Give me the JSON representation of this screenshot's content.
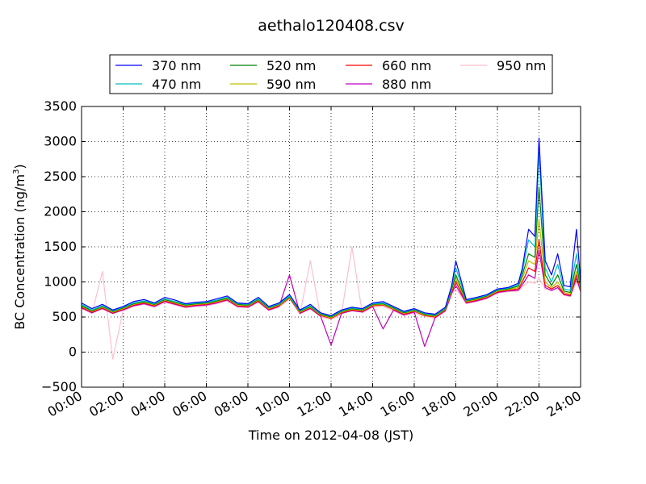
{
  "chart_data": {
    "type": "line",
    "title": "aethalo120408.csv",
    "xlabel": "Time on 2012-04-08 (JST)",
    "ylabel_main": "BC Concentration (ng/m",
    "ylabel_sup": "3",
    "ylabel_close": ")",
    "xlim": [
      0,
      24
    ],
    "ylim": [
      -500,
      3500
    ],
    "grid": true,
    "legend_position": "top-center",
    "x_ticks": [
      0,
      2,
      4,
      6,
      8,
      10,
      12,
      14,
      16,
      18,
      20,
      22,
      24
    ],
    "x_tick_labels": [
      "00:00",
      "02:00",
      "04:00",
      "06:00",
      "08:00",
      "10:00",
      "12:00",
      "14:00",
      "16:00",
      "18:00",
      "20:00",
      "22:00",
      "24:00"
    ],
    "y_ticks": [
      -500,
      0,
      500,
      1000,
      1500,
      2000,
      2500,
      3000,
      3500
    ],
    "y_tick_labels": [
      "−500",
      "0",
      "500",
      "1000",
      "1500",
      "2000",
      "2500",
      "3000",
      "3500"
    ],
    "x_sample_hours": [
      0.0,
      0.5,
      1.0,
      1.5,
      2.0,
      2.5,
      3.0,
      3.5,
      4.0,
      4.5,
      5.0,
      5.5,
      6.0,
      6.5,
      7.0,
      7.5,
      8.0,
      8.5,
      9.0,
      9.5,
      10.0,
      10.5,
      11.0,
      11.5,
      12.0,
      12.5,
      13.0,
      13.5,
      14.0,
      14.5,
      15.0,
      15.5,
      16.0,
      16.5,
      17.0,
      17.5,
      17.8,
      18.0,
      18.5,
      19.0,
      19.5,
      20.0,
      20.5,
      21.0,
      21.2,
      21.5,
      21.8,
      22.0,
      22.3,
      22.6,
      22.9,
      23.2,
      23.5,
      23.8,
      24.0
    ],
    "series": [
      {
        "name": "370 nm",
        "color": "#0000ff",
        "values": [
          700,
          620,
          680,
          600,
          650,
          720,
          750,
          700,
          780,
          740,
          690,
          710,
          720,
          760,
          800,
          700,
          690,
          780,
          650,
          700,
          820,
          600,
          680,
          560,
          520,
          600,
          640,
          620,
          700,
          720,
          650,
          580,
          620,
          560,
          540,
          640,
          950,
          1300,
          750,
          780,
          820,
          900,
          920,
          980,
          1200,
          1750,
          1650,
          3050,
          1300,
          1100,
          1400,
          950,
          930,
          1750,
          1000
        ]
      },
      {
        "name": "470 nm",
        "color": "#00bfbf",
        "values": [
          680,
          600,
          660,
          590,
          640,
          700,
          730,
          690,
          760,
          720,
          680,
          700,
          710,
          740,
          780,
          690,
          680,
          760,
          640,
          690,
          800,
          590,
          660,
          550,
          510,
          590,
          630,
          610,
          690,
          700,
          640,
          570,
          610,
          550,
          530,
          630,
          920,
          1200,
          740,
          770,
          810,
          890,
          910,
          960,
          1150,
          1600,
          1500,
          2850,
          1200,
          1000,
          1250,
          900,
          880,
          1400,
          950
        ]
      },
      {
        "name": "520 nm",
        "color": "#008000",
        "values": [
          660,
          590,
          650,
          580,
          630,
          690,
          720,
          680,
          750,
          710,
          670,
          690,
          700,
          730,
          770,
          680,
          670,
          750,
          630,
          680,
          790,
          580,
          650,
          540,
          500,
          580,
          620,
          600,
          680,
          690,
          630,
          560,
          600,
          540,
          520,
          620,
          900,
          1100,
          730,
          760,
          800,
          880,
          900,
          940,
          1100,
          1400,
          1350,
          2350,
          1100,
          950,
          1100,
          870,
          850,
          1250,
          920
        ]
      },
      {
        "name": "590 nm",
        "color": "#bfbf00",
        "values": [
          650,
          580,
          640,
          570,
          620,
          680,
          710,
          670,
          740,
          700,
          660,
          680,
          690,
          720,
          760,
          670,
          660,
          740,
          620,
          670,
          780,
          570,
          640,
          530,
          490,
          570,
          610,
          590,
          670,
          680,
          620,
          550,
          590,
          530,
          510,
          610,
          880,
          1050,
          720,
          750,
          790,
          870,
          890,
          920,
          1050,
          1300,
          1250,
          1900,
          1000,
          920,
          1000,
          850,
          830,
          1150,
          900
        ]
      },
      {
        "name": "660 nm",
        "color": "#ff0000",
        "values": [
          640,
          570,
          630,
          560,
          610,
          670,
          700,
          660,
          730,
          690,
          650,
          670,
          680,
          710,
          750,
          660,
          650,
          730,
          610,
          660,
          770,
          560,
          630,
          520,
          480,
          560,
          600,
          580,
          660,
          670,
          610,
          540,
          580,
          520,
          500,
          600,
          860,
          1000,
          710,
          740,
          780,
          860,
          880,
          900,
          1000,
          1200,
          1150,
          1600,
          950,
          900,
          950,
          830,
          810,
          1100,
          880
        ]
      },
      {
        "name": "880 nm",
        "color": "#bf00bf",
        "values": [
          630,
          560,
          620,
          550,
          600,
          660,
          690,
          650,
          720,
          680,
          640,
          660,
          670,
          700,
          740,
          650,
          640,
          720,
          600,
          650,
          1100,
          550,
          620,
          510,
          100,
          550,
          590,
          570,
          650,
          330,
          600,
          530,
          570,
          80,
          490,
          590,
          840,
          950,
          700,
          730,
          770,
          850,
          870,
          880,
          960,
          1100,
          1050,
          1450,
          920,
          880,
          920,
          820,
          800,
          1050,
          870
        ]
      },
      {
        "name": "950 nm",
        "color": "#ffc0cb",
        "values": [
          620,
          550,
          1150,
          -100,
          590,
          650,
          680,
          640,
          710,
          670,
          630,
          650,
          660,
          690,
          730,
          640,
          630,
          710,
          590,
          640,
          760,
          540,
          1300,
          500,
          470,
          540,
          1500,
          560,
          640,
          650,
          590,
          520,
          560,
          510,
          480,
          580,
          820,
          900,
          690,
          720,
          760,
          840,
          860,
          870,
          930,
          1000,
          980,
          1050,
          900,
          870,
          900,
          810,
          790,
          1000,
          860
        ]
      }
    ]
  }
}
